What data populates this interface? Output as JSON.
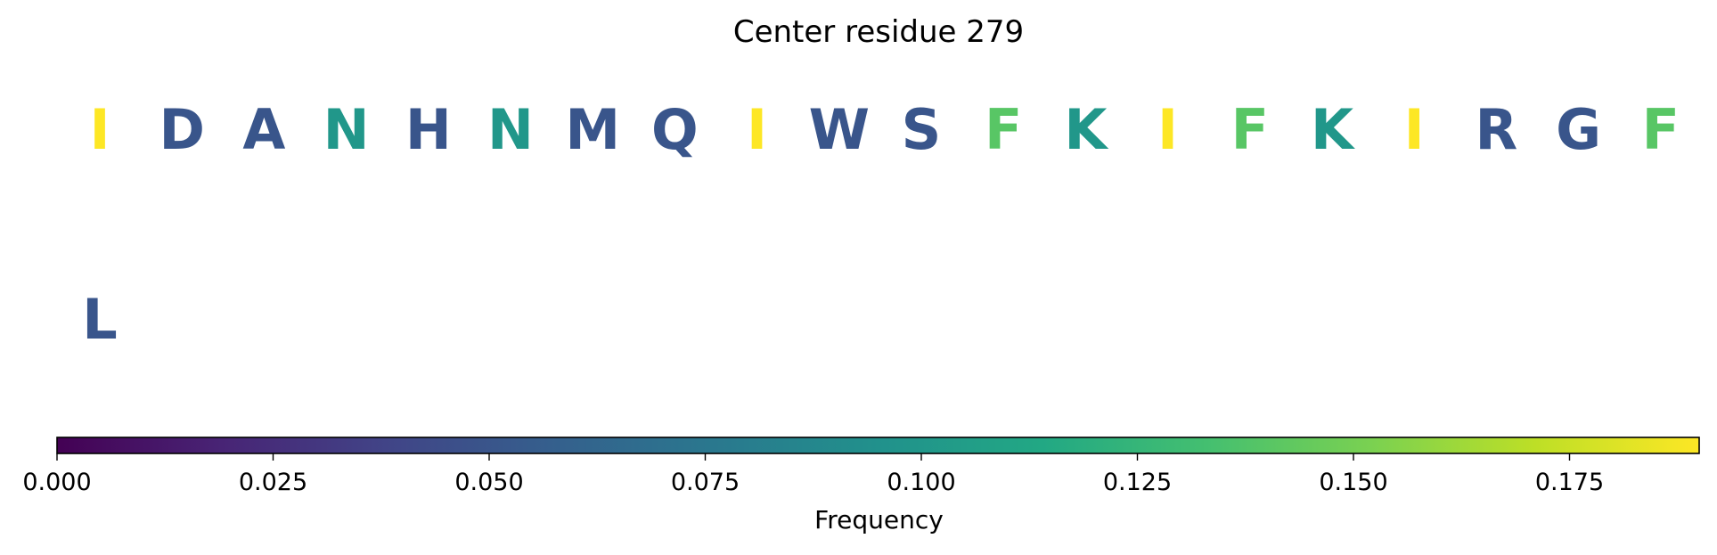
{
  "chart_data": {
    "type": "heatmap",
    "title": "Center residue 279",
    "rows": [
      {
        "residues": [
          {
            "letter": "I",
            "frequency": 0.19
          },
          {
            "letter": "D",
            "frequency": 0.05
          },
          {
            "letter": "A",
            "frequency": 0.05
          },
          {
            "letter": "N",
            "frequency": 0.1
          },
          {
            "letter": "H",
            "frequency": 0.05
          },
          {
            "letter": "N",
            "frequency": 0.1
          },
          {
            "letter": "M",
            "frequency": 0.05
          },
          {
            "letter": "Q",
            "frequency": 0.05
          },
          {
            "letter": "I",
            "frequency": 0.19
          },
          {
            "letter": "W",
            "frequency": 0.05
          },
          {
            "letter": "S",
            "frequency": 0.05
          },
          {
            "letter": "F",
            "frequency": 0.14
          },
          {
            "letter": "K",
            "frequency": 0.1
          },
          {
            "letter": "I",
            "frequency": 0.19
          },
          {
            "letter": "F",
            "frequency": 0.14
          },
          {
            "letter": "K",
            "frequency": 0.1
          },
          {
            "letter": "I",
            "frequency": 0.19
          },
          {
            "letter": "R",
            "frequency": 0.05
          },
          {
            "letter": "G",
            "frequency": 0.05
          },
          {
            "letter": "F",
            "frequency": 0.14
          }
        ]
      },
      {
        "residues": [
          {
            "letter": "L",
            "frequency": 0.05
          }
        ]
      }
    ],
    "colorbar": {
      "label": "Frequency",
      "colormap": "viridis",
      "range": [
        0,
        0.19
      ],
      "ticks": [
        0.0,
        0.025,
        0.05,
        0.075,
        0.1,
        0.125,
        0.15,
        0.175
      ],
      "tick_labels": [
        "0.000",
        "0.025",
        "0.050",
        "0.075",
        "0.100",
        "0.125",
        "0.150",
        "0.175"
      ]
    }
  }
}
